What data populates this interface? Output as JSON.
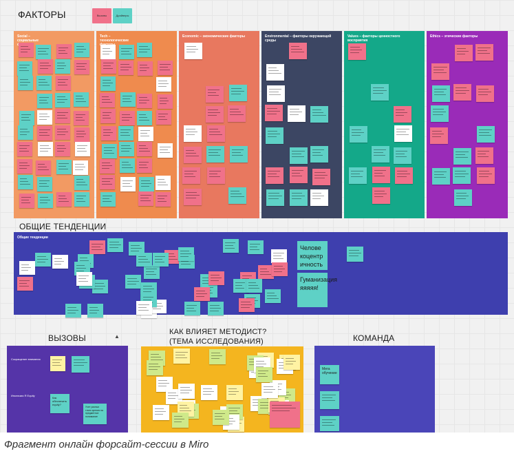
{
  "board": {
    "headings": {
      "factors": "ФАКТОРЫ",
      "trends": "ОБЩИЕ ТЕНДЕНЦИИ",
      "challenges": "ВЫЗОВЫ",
      "methodist_line1": "КАК ВЛИЯЕТ МЕТОДИСТ?",
      "methodist_line2": "(ТЕМА ИССЛЕДОВАНИЯ)",
      "team": "КОМАНДА"
    },
    "legend": [
      {
        "label": "Вызовы",
        "color": "#f0718a"
      },
      {
        "label": "Драйверы",
        "color": "#5ed1c6"
      }
    ],
    "factor_columns": [
      {
        "title": "Social – социальные факторы",
        "color": "#f29a63"
      },
      {
        "title": "Tech – технологические факторы",
        "color": "#ef8b4e"
      },
      {
        "title": "Economic – экономические факторы",
        "color": "#e8785f"
      },
      {
        "title": "Environmental – факторы окружающей среды",
        "color": "#3c4663"
      },
      {
        "title": "Values – факторы ценностного восприятия",
        "color": "#14a889"
      },
      {
        "title": "Ethics – этические факторы",
        "color": "#9a2bb8"
      }
    ],
    "trends_frame": {
      "title": "Общие тенденции",
      "color": "#3e3fae"
    },
    "trend_big_notes": [
      {
        "text": "Челове коцентр ичность"
      },
      {
        "text": "Гуманизация яяяяя!"
      }
    ],
    "challenges_frame": {
      "color": "#5534a8",
      "rows": [
        {
          "label": "Сокращение внимания"
        },
        {
          "label": "Инклюзия Я Equity"
        }
      ],
      "notes": [
        {
          "text": "Как обеспечить equity?"
        },
        {
          "text": "Учет разных точек зрения на предметное понимание"
        }
      ]
    },
    "methodist_frame": {
      "color": "#f4b51f"
    },
    "team_frame": {
      "color": "#4a45b8",
      "note": "Мега обучение"
    }
  },
  "caption": "Фрагмент онлайн форсайт-сессии в Miro",
  "colors": {
    "pink": "#f0718a",
    "teal": "#5ed1c6",
    "white_note": "#ffffff",
    "light_green": "#cfe98a",
    "yellow_note": "#fff3a3"
  }
}
